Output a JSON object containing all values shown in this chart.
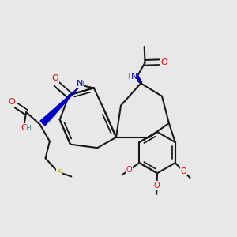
{
  "background_color": "#e8e8e8",
  "bond_color": "#1a1a1a",
  "bond_width": 1.5,
  "atom_colors": {
    "O": "#ff0000",
    "N": "#0000cc",
    "S": "#bbbb00",
    "C": "#1a1a1a",
    "H": "#4a8a8a"
  },
  "font_size_atom": 8,
  "figsize": [
    3.0,
    3.0
  ],
  "dpi": 100
}
